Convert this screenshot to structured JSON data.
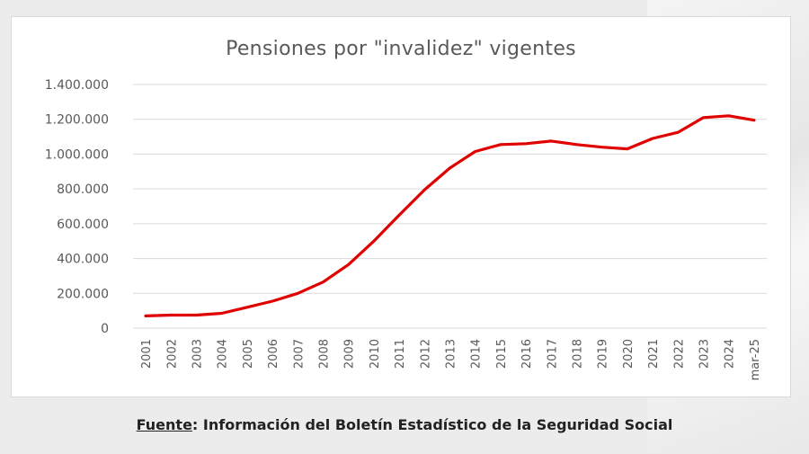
{
  "chart_data": {
    "type": "line",
    "title": "Pensiones por \"invalidez\" vigentes",
    "xlabel": "",
    "ylabel": "",
    "ylim": [
      0,
      1400000
    ],
    "yticks": [
      0,
      200000,
      400000,
      600000,
      800000,
      1000000,
      1200000,
      1400000
    ],
    "ytick_labels": [
      "0",
      "200.000",
      "400.000",
      "600.000",
      "800.000",
      "1.000.000",
      "1.200.000",
      "1.400.000"
    ],
    "grid": true,
    "legend": "none",
    "categories": [
      "2001",
      "2002",
      "2003",
      "2004",
      "2005",
      "2006",
      "2007",
      "2008",
      "2009",
      "2010",
      "2011",
      "2012",
      "2013",
      "2014",
      "2015",
      "2016",
      "2017",
      "2018",
      "2019",
      "2020",
      "2021",
      "2022",
      "2023",
      "2024",
      "mar-25"
    ],
    "series": [
      {
        "color": "#e00000",
        "values": [
          70000,
          75000,
          75000,
          85000,
          120000,
          155000,
          200000,
          265000,
          365000,
          500000,
          650000,
          795000,
          920000,
          1015000,
          1055000,
          1060000,
          1075000,
          1055000,
          1040000,
          1030000,
          1090000,
          1125000,
          1210000,
          1220000,
          1195000
        ]
      }
    ]
  },
  "footer": {
    "source_label": "Fuente",
    "source_text": ": Información del Boletín Estadístico de la Seguridad Social"
  }
}
